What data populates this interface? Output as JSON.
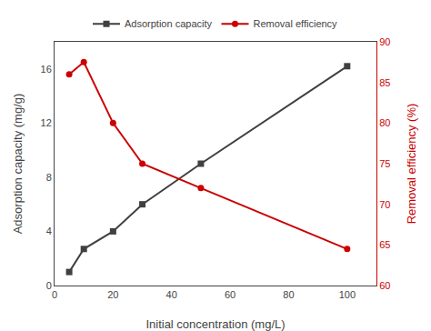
{
  "chart_data": {
    "type": "line",
    "xlabel": "Initial concentration (mg/L)",
    "ylabel": "Adsorption capacity (mg/g)",
    "y2label": "Removal efficiency (%)",
    "x": [
      5,
      10,
      20,
      30,
      50,
      100
    ],
    "series": [
      {
        "name": "Adsorption capacity",
        "color": "#404040",
        "marker": "square",
        "line_style": "solid",
        "values": [
          1.0,
          2.7,
          4.0,
          6.0,
          9.0,
          16.2
        ]
      },
      {
        "name": "Removal efficiency",
        "color": "#cc0000",
        "marker": "circle",
        "line_style": "solid",
        "axis": "y2",
        "values": [
          86.0,
          87.5,
          80.0,
          75.0,
          72.0,
          64.5
        ]
      }
    ],
    "xlim": [
      0,
      110
    ],
    "xticks": [
      0,
      20,
      40,
      60,
      80,
      100
    ],
    "ylim": [
      0,
      18
    ],
    "yticks": [
      0,
      4,
      8,
      12,
      16
    ],
    "y2lim": [
      60,
      90
    ],
    "y2ticks": [
      60,
      65,
      70,
      75,
      80,
      85,
      90
    ],
    "grid": false,
    "legend": "top"
  }
}
